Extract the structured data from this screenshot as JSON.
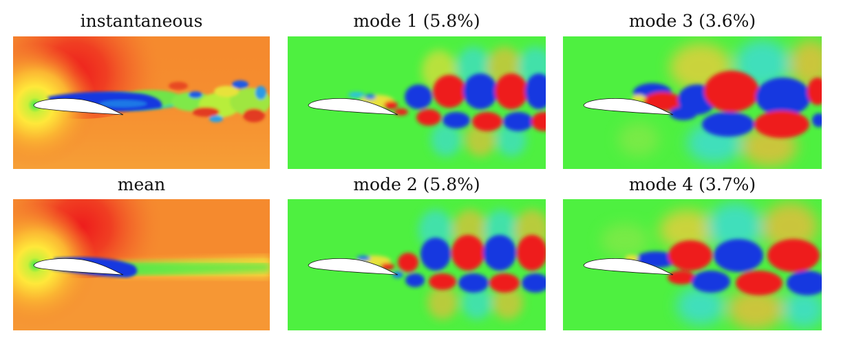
{
  "panels": [
    {
      "id": "instantaneous",
      "title": "instantaneous",
      "field": "instantaneous"
    },
    {
      "id": "mode1",
      "title": "mode 1 (5.8%)",
      "field": "mode"
    },
    {
      "id": "mode3",
      "title": "mode 3 (3.6%)",
      "field": "mode"
    },
    {
      "id": "mean",
      "title": "mean",
      "field": "mean"
    },
    {
      "id": "mode2",
      "title": "mode 2 (5.8%)",
      "field": "mode"
    },
    {
      "id": "mode4",
      "title": "mode 4 (3.7%)",
      "field": "mode"
    }
  ],
  "colormap": {
    "background_mode": "#4ef040",
    "positive": "#ee1c1c",
    "negative": "#0f33e6",
    "mean_field_base": "#f58a2e",
    "airfoil_fill": "#ffffff",
    "airfoil_stroke": "#111111"
  }
}
